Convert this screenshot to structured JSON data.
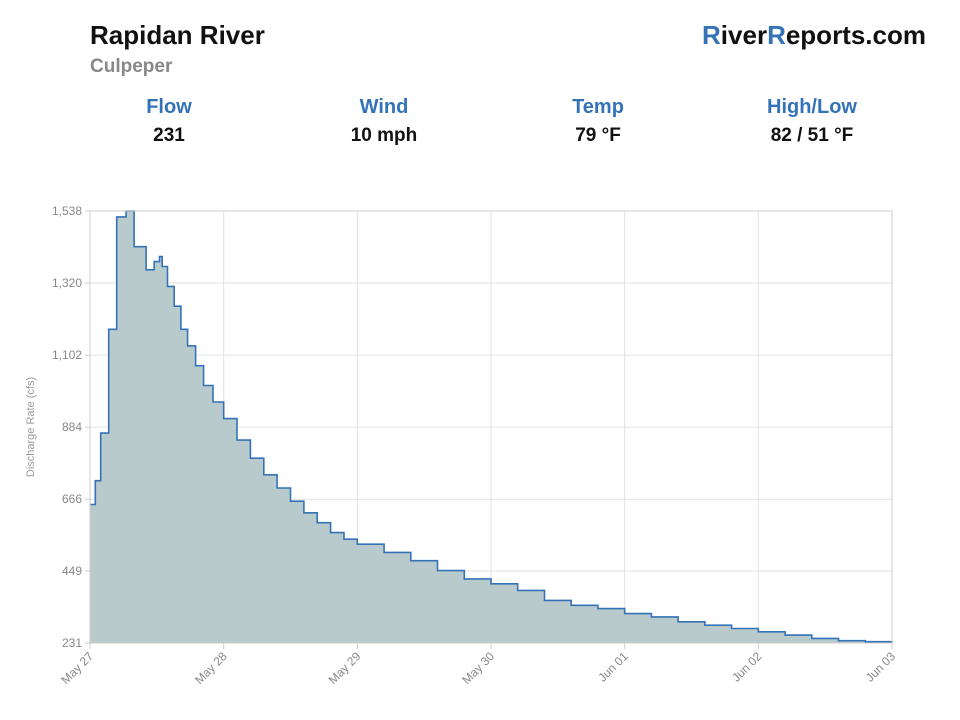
{
  "header": {
    "river_name": "Rapidan River",
    "location": "Culpeper",
    "brand_initial_1": "R",
    "brand_mid_1": "iver",
    "brand_initial_2": "R",
    "brand_mid_2": "eports.com",
    "accent_color": "#3473b7"
  },
  "stats": [
    {
      "label": "Flow",
      "value": "231"
    },
    {
      "label": "Wind",
      "value": "10 mph"
    },
    {
      "label": "Temp",
      "value": "79 °F"
    },
    {
      "label": "High/Low",
      "value": "82 / 51 °F"
    }
  ],
  "chart_data": {
    "type": "area",
    "step": true,
    "title": "",
    "xlabel": "",
    "ylabel": "Discharge Rate (cfs)",
    "ylim": [
      231,
      1538
    ],
    "yticks": [
      231,
      449,
      666,
      884,
      1102,
      1320,
      1538
    ],
    "ytick_labels": [
      "231",
      "449",
      "666",
      "884",
      "1,102",
      "1,320",
      "1,538"
    ],
    "xlim": [
      0,
      6
    ],
    "xtick_labels": [
      "May 27",
      "May 28",
      "May 29",
      "May 30",
      "Jun 01",
      "Jun 02",
      "Jun 03"
    ],
    "grid": true,
    "line_color": "#3473b7",
    "fill_color": "#b8cacb",
    "series": [
      {
        "x": [
          0,
          0.04,
          0.08,
          0.14,
          0.2,
          0.27,
          0.33,
          0.42,
          0.48,
          0.52,
          0.54,
          0.58,
          0.63,
          0.68,
          0.73,
          0.79,
          0.85,
          0.92,
          1.0,
          1.1,
          1.2,
          1.3,
          1.4,
          1.5,
          1.6,
          1.7,
          1.8,
          1.9,
          2.0,
          2.2,
          2.4,
          2.6,
          2.8,
          3.0,
          3.2,
          3.4,
          3.6,
          3.8,
          4.0,
          4.2,
          4.4,
          4.6,
          4.8,
          5.0,
          5.2,
          5.4,
          5.6,
          5.8,
          6.0
        ],
        "y": [
          650,
          722,
          866,
          1180,
          1520,
          1560,
          1430,
          1360,
          1385,
          1400,
          1370,
          1310,
          1250,
          1180,
          1130,
          1070,
          1010,
          960,
          910,
          845,
          790,
          740,
          700,
          660,
          625,
          595,
          565,
          545,
          530,
          505,
          480,
          450,
          425,
          410,
          390,
          360,
          345,
          335,
          320,
          310,
          295,
          285,
          275,
          265,
          255,
          245,
          238,
          235,
          232
        ]
      }
    ]
  }
}
